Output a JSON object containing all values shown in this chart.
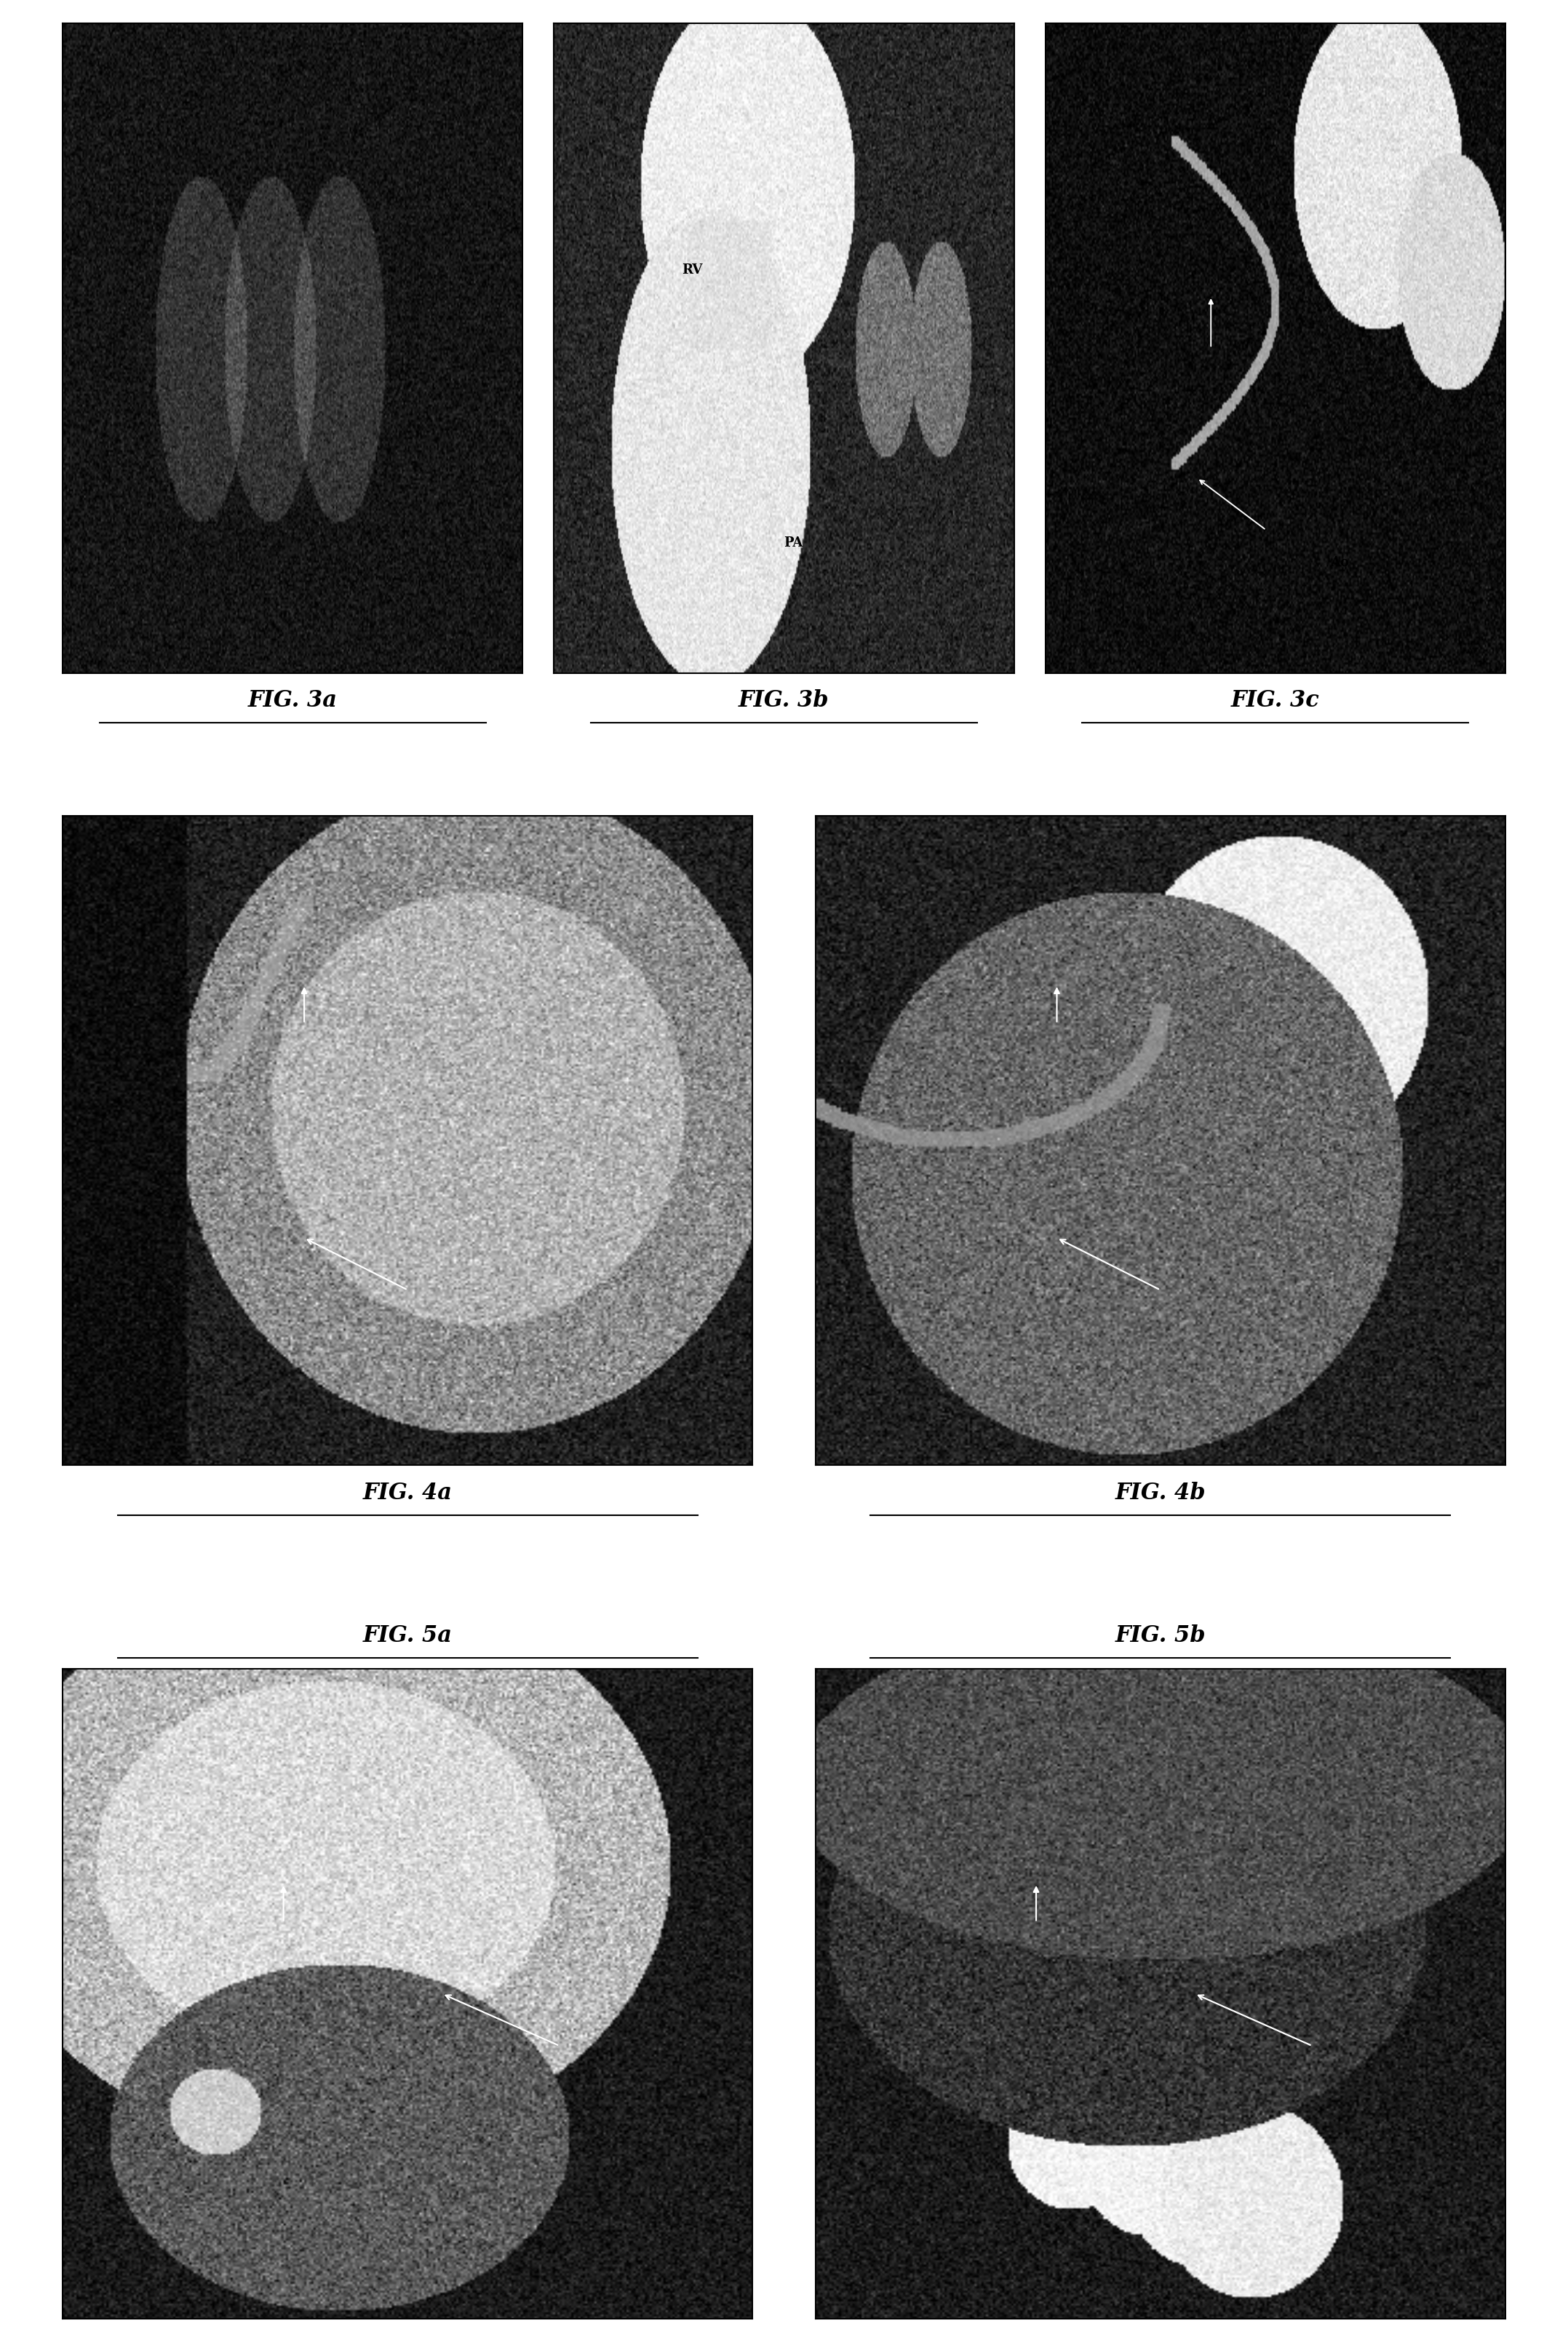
{
  "bg_color": "#ffffff",
  "fig_width": 21.55,
  "fig_height": 32.18,
  "row0_labels": [
    "FIG. 3a",
    "FIG. 3b",
    "FIG. 3c"
  ],
  "row1_labels": [
    "FIG. 4a",
    "FIG. 4b"
  ],
  "row2_labels": [
    "FIG. 5a",
    "FIG. 5b"
  ],
  "row0_styles": [
    "dark_uniform",
    "bright_vessel",
    "vessel_ao"
  ],
  "row1_styles": [
    "cardiac_4a",
    "cardiac_4b"
  ],
  "row2_styles": [
    "cardiac_5a",
    "cardiac_5b"
  ],
  "label_fontsize": 22,
  "label_style": "italic",
  "label_fontweight": "bold",
  "panel_size": 300
}
